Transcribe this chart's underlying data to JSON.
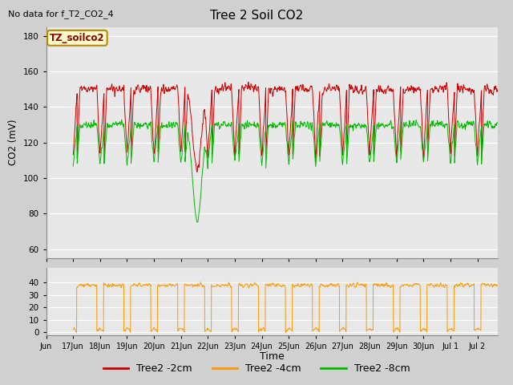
{
  "title": "Tree 2 Soil CO2",
  "no_data_text": "No data for f_T2_CO2_4",
  "ylabel": "CO2 (mV)",
  "xlabel": "Time",
  "legend_labels": [
    "Tree2 -2cm",
    "Tree2 -4cm",
    "Tree2 -8cm"
  ],
  "legend_colors": [
    "#cc0000",
    "#ff9900",
    "#00bb00"
  ],
  "tz_label": "TZ_soilco2",
  "upper_ylim": [
    55,
    185
  ],
  "upper_yticks": [
    60,
    80,
    100,
    120,
    140,
    160,
    180
  ],
  "lower_ylim": [
    -2,
    52
  ],
  "lower_yticks": [
    0,
    10,
    20,
    30,
    40
  ],
  "background_color": "#d0d0d0",
  "plot_bg_color": "#e8e8e8",
  "n_points": 3600,
  "start_day": 16.0,
  "end_day": 32.5
}
